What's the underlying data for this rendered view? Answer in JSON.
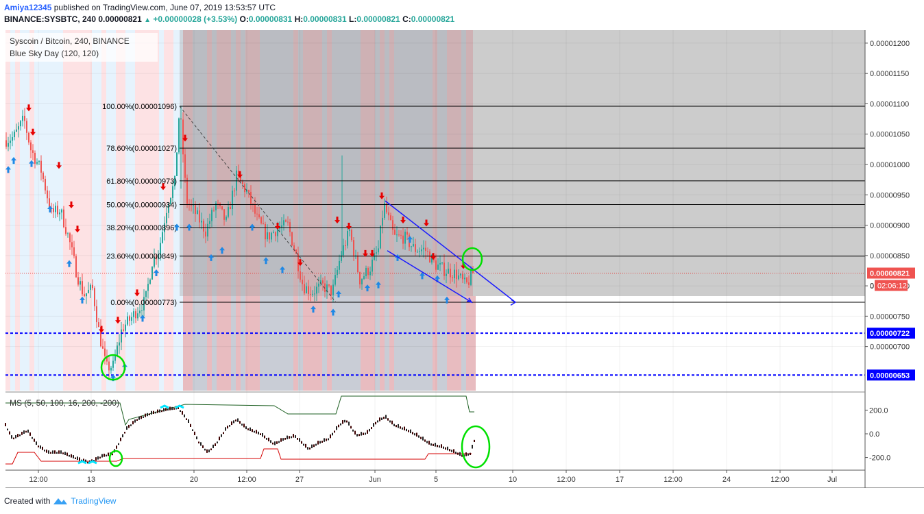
{
  "header": {
    "user": "Amiya12345",
    "published": "published on TradingView.com, June 07, 2019 13:53:57 UTC",
    "symbol": "BINANCE:SYSBTC, 240",
    "last": "0.00000821",
    "change": "+0.00000028 (+3.53%)",
    "o_label": "O:",
    "o": "0.00000831",
    "h_label": "H:",
    "h": "0.00000831",
    "l_label": "L:",
    "l": "0.00000821",
    "c_label": "C:",
    "c": "0.00000821"
  },
  "legend": {
    "title": "Syscoin / Bitcoin, 240, BINANCE",
    "indicator": "Blue Sky Day (120, 120)"
  },
  "price_tag": {
    "value": "0.00000821",
    "countdown": "02:06:12",
    "countdown_prefix": "0"
  },
  "support_lines": [
    {
      "value": 722,
      "label": "0.00000722"
    },
    {
      "value": 653,
      "label": "0.00000653"
    }
  ],
  "fib_levels": [
    {
      "label": "100.00%(0.00001096)",
      "value": 1096
    },
    {
      "label": "78.60%(0.00001027)",
      "value": 1027
    },
    {
      "label": "61.80%(0.00000973)",
      "value": 973
    },
    {
      "label": "50.00%(0.00000934)",
      "value": 934
    },
    {
      "label": "38.20%(0.00000896)",
      "value": 896
    },
    {
      "label": "23.60%(0.00000849)",
      "value": 849
    },
    {
      "label": "0.00%(0.00000773)",
      "value": 773
    }
  ],
  "price_axis": [
    "0.00001200",
    "0.00001150",
    "0.00001100",
    "0.00001050",
    "0.00001000",
    "0.00000950",
    "0.00000900",
    "0.00000850",
    "0.00000800",
    "0.00000750",
    "0.00000700"
  ],
  "price_axis_values": [
    1200,
    1150,
    1100,
    1050,
    1000,
    950,
    900,
    850,
    800,
    750,
    700
  ],
  "ms_panel": {
    "label": "MS (5, 50, 100, 16, 200, -200)",
    "axis": [
      "200.0",
      "0.0",
      "-200.0"
    ],
    "axis_values": [
      200,
      0,
      -200
    ]
  },
  "time_axis": [
    "12:00",
    "13",
    "20",
    "12:00",
    "27",
    "Jun",
    "5",
    "10",
    "12:00",
    "17",
    "12:00",
    "24",
    "12:00",
    "Jul"
  ],
  "footer": {
    "created": "Created with",
    "brand": "TradingView"
  },
  "colors": {
    "up": "#26a69a",
    "down": "#ef5350",
    "blue_line": "#0000ff",
    "fib_line": "#000000",
    "red_line": "#e53935",
    "green_line": "#1b5e20"
  },
  "chart_data": {
    "type": "candlestick",
    "title": "Syscoin / Bitcoin, 240, BINANCE",
    "ylim": [
      6.4e-06,
      1.225e-05
    ],
    "close_path_approx": [
      {
        "t": "Jun 11",
        "price": 1.05e-05
      },
      {
        "t": "Jun 12",
        "price": 9.9e-06
      },
      {
        "t": "Jun 12 12:00",
        "price": 9.05e-06
      },
      {
        "t": "Jun 13",
        "price": 7.8e-06
      },
      {
        "t": "Jun 13 12:00",
        "price": 6.65e-06
      },
      {
        "t": "Jun 15",
        "price": 7.4e-06
      },
      {
        "t": "Jun 17",
        "price": 8.5e-06
      },
      {
        "t": "Jun 19",
        "price": 1.096e-05
      },
      {
        "t": "Jun 21",
        "price": 9.3e-06
      },
      {
        "t": "Jun 22",
        "price": 9.65e-06
      },
      {
        "t": "Jun 25",
        "price": 8.7e-06
      },
      {
        "t": "Jun 28",
        "price": 7.9e-06
      },
      {
        "t": "May 29",
        "price": 8e-06
      },
      {
        "t": "Jun 1",
        "price": 9.35e-06
      },
      {
        "t": "Jun 3",
        "price": 8.7e-06
      },
      {
        "t": "Jun 5",
        "price": 8.4e-06
      },
      {
        "t": "Jun 7",
        "price": 8.21e-06
      }
    ]
  }
}
